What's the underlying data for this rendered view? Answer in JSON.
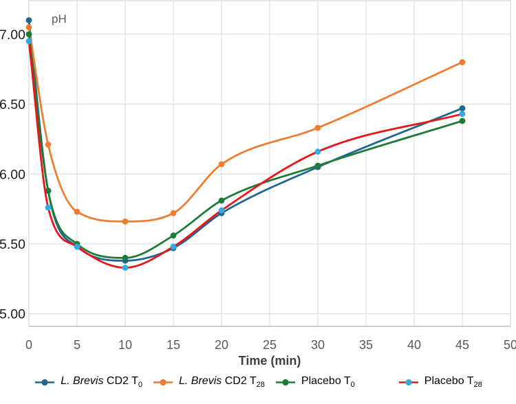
{
  "figure": {
    "background": "#ffffff",
    "grid_color": "#d9d9d9",
    "border_color": "#cfcfcf",
    "axis_line_color": "#bfbfbf"
  },
  "chart_data": {
    "type": "line",
    "title": "",
    "ylabel": "pH",
    "xlabel": "Time (min)",
    "x": [
      0,
      2,
      5,
      10,
      15,
      20,
      30,
      45
    ],
    "xlim": [
      0,
      50
    ],
    "ylim": [
      4.91,
      7.24
    ],
    "x_ticks": [
      0,
      5,
      10,
      15,
      20,
      25,
      30,
      35,
      40,
      45,
      50
    ],
    "y_ticks": [
      7.0,
      6.5,
      6.0,
      5.5,
      5.0
    ],
    "y_tick_labels": [
      "7.00",
      "6.50",
      "6.00",
      "5.50",
      "5.00"
    ],
    "grid": true,
    "legend_position": "bottom",
    "marker": "circle",
    "series": [
      {
        "name": "L. Brevis CD2 T0",
        "name_parts": {
          "italic": "L. Brevis",
          "regular": " CD2 T",
          "sub": "0"
        },
        "line_color": "#1f6690",
        "marker_color": "#1f6690",
        "values": [
          7.1,
          5.88,
          5.48,
          5.38,
          5.47,
          5.72,
          6.05,
          6.47
        ]
      },
      {
        "name": "L. Brevis CD2 T28",
        "name_parts": {
          "italic": "L. Brevis",
          "regular": " CD2 T",
          "sub": "28"
        },
        "line_color": "#ee7d31",
        "marker_color": "#ed7d31",
        "values": [
          7.05,
          6.21,
          5.73,
          5.66,
          5.72,
          6.07,
          6.33,
          6.8
        ]
      },
      {
        "name": "Placebo T0",
        "name_parts": {
          "italic": "",
          "regular": "Placebo T",
          "sub": "0"
        },
        "line_color": "#1e7b37",
        "marker_color": "#1e7b37",
        "values": [
          7.0,
          5.88,
          5.5,
          5.4,
          5.56,
          5.81,
          6.06,
          6.38
        ]
      },
      {
        "name": "Placebo T28",
        "name_parts": {
          "italic": "",
          "regular": "Placebo T",
          "sub": "28"
        },
        "line_color": "#ea1517",
        "marker_color": "#35a9e1",
        "values": [
          6.95,
          5.76,
          5.48,
          5.33,
          5.48,
          5.74,
          6.16,
          6.43
        ]
      }
    ]
  }
}
